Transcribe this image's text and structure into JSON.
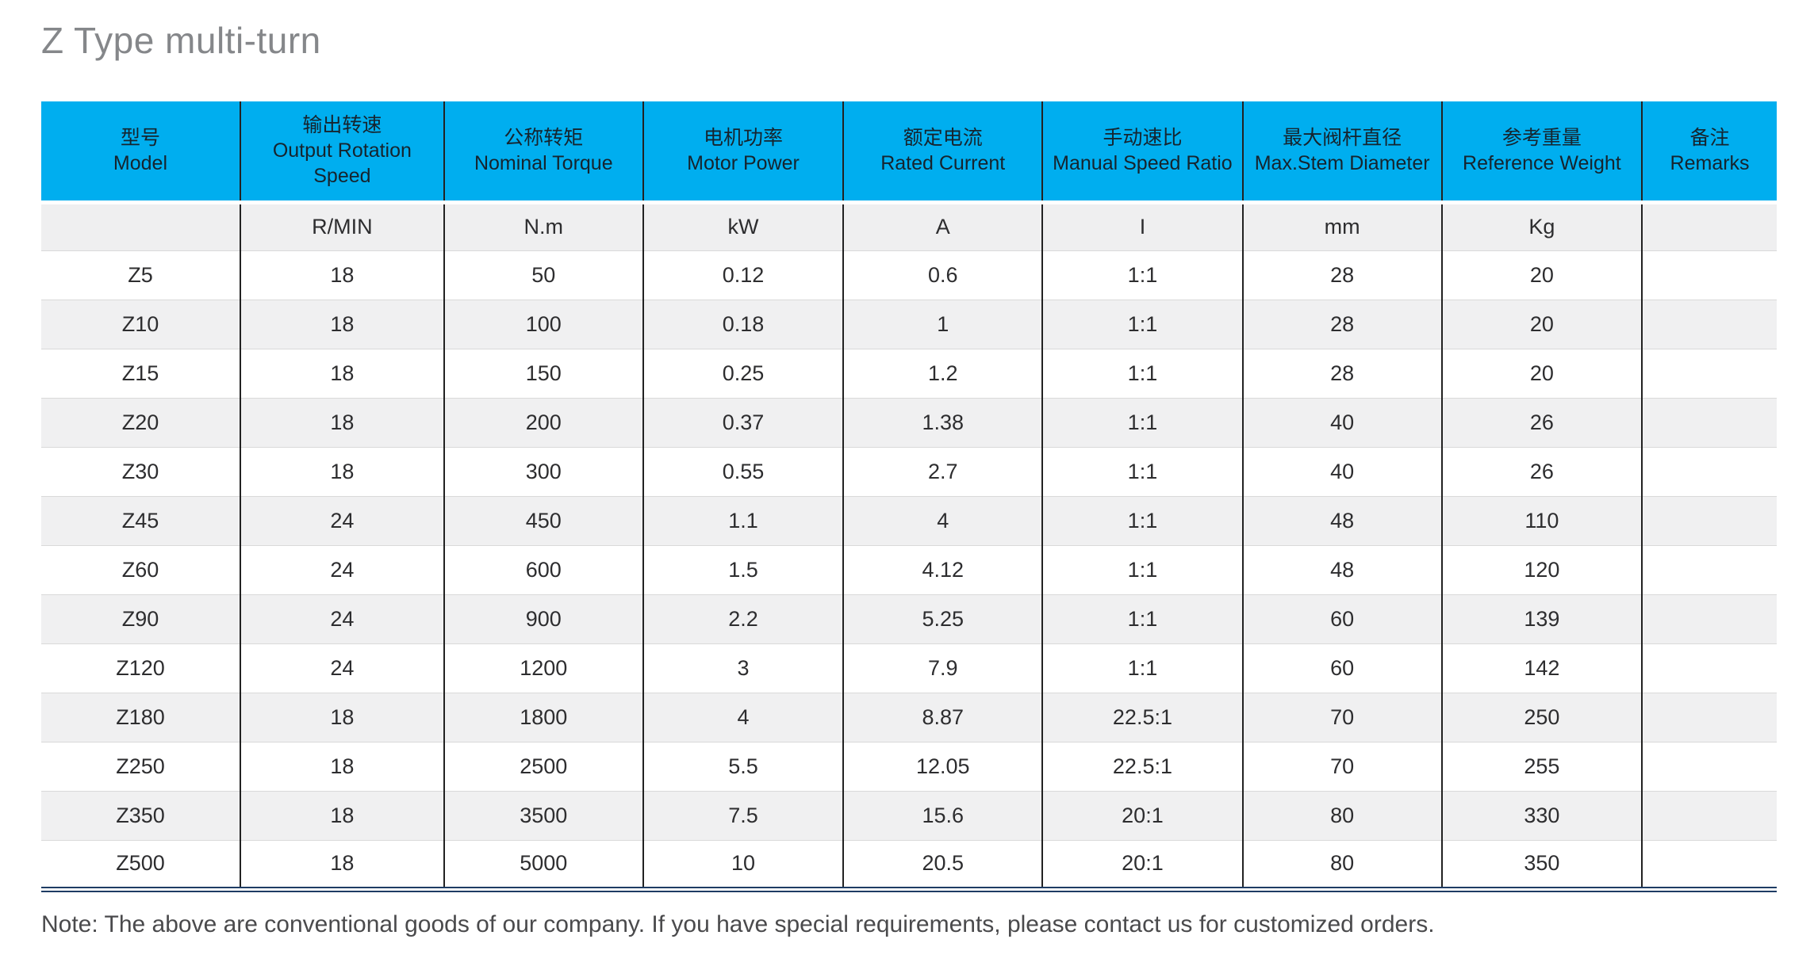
{
  "title": "Z Type multi-turn",
  "note": "Note: The above are conventional goods of our company. If you have special requirements, please contact us for customized orders.",
  "colors": {
    "header_bg": "#00aeef",
    "header_text": "#16242e",
    "units_row_bg": "#efeff0",
    "row_alt_bg": "#f0f0f1",
    "column_divider": "#222222",
    "bottom_double_line": "#1e3c64",
    "title_text": "#85878a"
  },
  "table": {
    "headers": [
      {
        "zh": "型号",
        "en": "Model"
      },
      {
        "zh": "输出转速",
        "en": "Output Rotation Speed"
      },
      {
        "zh": "公称转矩",
        "en": "Nominal Torque"
      },
      {
        "zh": "电机功率",
        "en": "Motor Power"
      },
      {
        "zh": "额定电流",
        "en": "Rated Current"
      },
      {
        "zh": "手动速比",
        "en": "Manual Speed Ratio"
      },
      {
        "zh": "最大阀杆直径",
        "en": "Max.Stem Diameter"
      },
      {
        "zh": "参考重量",
        "en": "Reference Weight"
      },
      {
        "zh": "备注",
        "en": "Remarks"
      }
    ],
    "units": [
      "",
      "R/MIN",
      "N.m",
      "kW",
      "A",
      "I",
      "mm",
      "Kg",
      ""
    ],
    "rows": [
      [
        "Z5",
        "18",
        "50",
        "0.12",
        "0.6",
        "1:1",
        "28",
        "20",
        ""
      ],
      [
        "Z10",
        "18",
        "100",
        "0.18",
        "1",
        "1:1",
        "28",
        "20",
        ""
      ],
      [
        "Z15",
        "18",
        "150",
        "0.25",
        "1.2",
        "1:1",
        "28",
        "20",
        ""
      ],
      [
        "Z20",
        "18",
        "200",
        "0.37",
        "1.38",
        "1:1",
        "40",
        "26",
        ""
      ],
      [
        "Z30",
        "18",
        "300",
        "0.55",
        "2.7",
        "1:1",
        "40",
        "26",
        ""
      ],
      [
        "Z45",
        "24",
        "450",
        "1.1",
        "4",
        "1:1",
        "48",
        "110",
        ""
      ],
      [
        "Z60",
        "24",
        "600",
        "1.5",
        "4.12",
        "1:1",
        "48",
        "120",
        ""
      ],
      [
        "Z90",
        "24",
        "900",
        "2.2",
        "5.25",
        "1:1",
        "60",
        "139",
        ""
      ],
      [
        "Z120",
        "24",
        "1200",
        "3",
        "7.9",
        "1:1",
        "60",
        "142",
        ""
      ],
      [
        "Z180",
        "18",
        "1800",
        "4",
        "8.87",
        "22.5:1",
        "70",
        "250",
        ""
      ],
      [
        "Z250",
        "18",
        "2500",
        "5.5",
        "12.05",
        "22.5:1",
        "70",
        "255",
        ""
      ],
      [
        "Z350",
        "18",
        "3500",
        "7.5",
        "15.6",
        "20:1",
        "80",
        "330",
        ""
      ],
      [
        "Z500",
        "18",
        "5000",
        "10",
        "20.5",
        "20:1",
        "80",
        "350",
        ""
      ]
    ]
  }
}
